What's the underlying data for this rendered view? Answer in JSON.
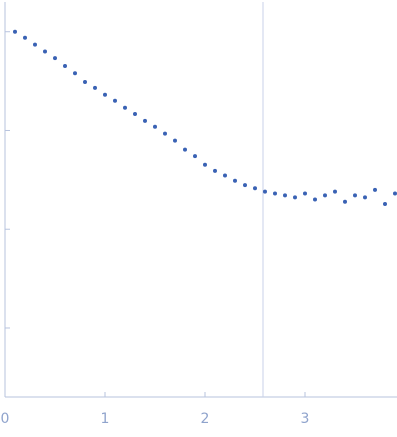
{
  "chart_data": {
    "type": "scatter",
    "log_y": true,
    "color": "#3a62b4",
    "axis_color": "#b7c3de",
    "vline": 2.58,
    "x": [
      0.1,
      0.2,
      0.3,
      0.4,
      0.5,
      0.6,
      0.7,
      0.8,
      0.9,
      1.0,
      1.1,
      1.2,
      1.3,
      1.4,
      1.5,
      1.6,
      1.7,
      1.8,
      1.9,
      2.0,
      2.1,
      2.2,
      2.3,
      2.4,
      2.5,
      2.6,
      2.7,
      2.8,
      2.9,
      3.0,
      3.1,
      3.2,
      3.3,
      3.4,
      3.5,
      3.6,
      3.7,
      3.8,
      3.9
    ],
    "values": [
      1.0,
      0.87,
      0.74,
      0.63,
      0.54,
      0.45,
      0.38,
      0.31,
      0.27,
      0.23,
      0.2,
      0.17,
      0.147,
      0.125,
      0.109,
      0.093,
      0.079,
      0.064,
      0.055,
      0.045,
      0.039,
      0.035,
      0.031,
      0.028,
      0.026,
      0.024,
      0.023,
      0.022,
      0.021,
      0.023,
      0.02,
      0.022,
      0.024,
      0.019,
      0.022,
      0.021,
      0.025,
      0.018,
      0.023
    ],
    "xlim": [
      0,
      3.93
    ],
    "ylim": [
      0.0002,
      2
    ],
    "xticks": [
      0,
      1,
      2,
      3
    ],
    "yticks": [
      1,
      0.1,
      0.01,
      0.001
    ]
  }
}
